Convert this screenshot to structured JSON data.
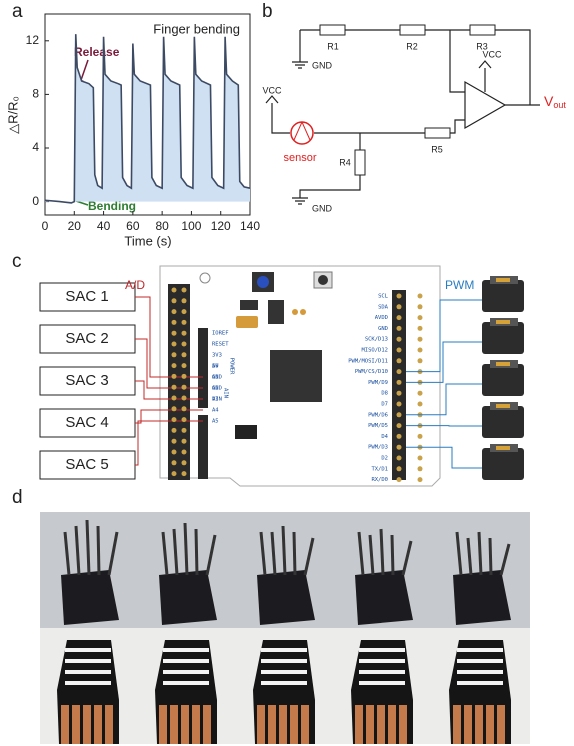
{
  "panel_labels": [
    "a",
    "b",
    "c",
    "d"
  ],
  "chart_data": {
    "type": "line",
    "xlabel": "Time (s)",
    "ylabel": "△R/R₀",
    "annotations": [
      "Finger bending",
      "Release",
      "Bending"
    ],
    "color": "#3c4a64",
    "fill": "#cfe0f3",
    "x": [
      0,
      10,
      18,
      20,
      21,
      22,
      25,
      30,
      33,
      34,
      36,
      39,
      40,
      41,
      45,
      50,
      52,
      53,
      56,
      59,
      60,
      61,
      65,
      72,
      73,
      76,
      80,
      81,
      82,
      86,
      92,
      93,
      97,
      101,
      102,
      103,
      107,
      113,
      114,
      118,
      122,
      123,
      124,
      128,
      132,
      133,
      136,
      140
    ],
    "values": [
      0.1,
      0,
      -0.1,
      0,
      12.5,
      10,
      9,
      8.8,
      8.5,
      2,
      1.2,
      1,
      12.3,
      9.5,
      9,
      8.8,
      8.7,
      1.8,
      1.2,
      1,
      11.8,
      9.5,
      9,
      8.7,
      1.8,
      1.2,
      1,
      12.3,
      9.5,
      9,
      8.7,
      1.8,
      1.2,
      1,
      12.3,
      9.5,
      9,
      8.7,
      1.8,
      1.2,
      1,
      12.3,
      9.5,
      9,
      8.7,
      1.5,
      1.1,
      1
    ],
    "xlim": [
      0,
      140
    ],
    "ylim": [
      -1,
      14
    ],
    "xticks": [
      0,
      20,
      40,
      60,
      80,
      100,
      120,
      140
    ],
    "yticks": [
      0,
      4,
      8,
      12
    ]
  },
  "circuit": {
    "r1": "R1",
    "r2": "R2",
    "r3": "R3",
    "r4": "R4",
    "r5": "R5",
    "gnd_top": "GND",
    "gnd_bottom": "GND",
    "vcc_left": "VCC",
    "vcc_amp": "VCC",
    "sensor": "sensor",
    "vout": "V",
    "vout_sub": "out"
  },
  "board": {
    "inputs": [
      "SAC 1",
      "SAC 2",
      "SAC 3",
      "SAC 4",
      "SAC 5"
    ],
    "input_bus": "A/D",
    "output_bus": "PWM",
    "power_pins": [
      "IOREF",
      "RESET",
      "3V3",
      "5V",
      "GND",
      "GND",
      "VIN"
    ],
    "power_group": "POWER",
    "analog_pins": [
      "A0",
      "A1",
      "A2",
      "A3",
      "A4",
      "A5"
    ],
    "analog_group": "AIN",
    "digital_pins": [
      "SCL",
      "SDA",
      "AVDD",
      "GND",
      "SCK/D13",
      "MISO/D12",
      "PWM/MOSI/D11",
      "PWM/CS/D10",
      "PWM/D9",
      "D8",
      "D7",
      "PWM/D6",
      "PWM/D5",
      "D4",
      "PWM/D3",
      "D2",
      "TX/D1",
      "RX/D0"
    ]
  }
}
